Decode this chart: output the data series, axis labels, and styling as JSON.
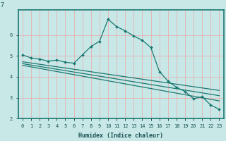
{
  "xlabel": "Humidex (Indice chaleur)",
  "bg_color": "#c8e8e8",
  "plot_bg_color": "#c8e8e8",
  "grid_color": "#e8b0b0",
  "line_color": "#1a7870",
  "border_color": "#1a7870",
  "xlabel_color": "#1a5050",
  "ylabel_color": "#1a5050",
  "tick_color": "#1a5050",
  "xlim": [
    -0.5,
    23.5
  ],
  "ylim": [
    2,
    7.2
  ],
  "yticks": [
    2,
    3,
    4,
    5,
    6
  ],
  "ytick_labels": [
    "2",
    "3",
    "4",
    "5",
    "6"
  ],
  "xticks": [
    0,
    1,
    2,
    3,
    4,
    5,
    6,
    7,
    8,
    9,
    10,
    11,
    12,
    13,
    14,
    15,
    16,
    17,
    18,
    19,
    20,
    21,
    22,
    23
  ],
  "line1_x": [
    0,
    1,
    2,
    3,
    4,
    5,
    6,
    7,
    8,
    9,
    10,
    11,
    12,
    13,
    14,
    15,
    16,
    17,
    18,
    19,
    20,
    21,
    22,
    23
  ],
  "line1_y": [
    5.05,
    4.9,
    4.85,
    4.75,
    4.8,
    4.7,
    4.65,
    5.05,
    5.45,
    5.7,
    6.75,
    6.4,
    6.2,
    5.95,
    5.75,
    5.4,
    4.25,
    3.8,
    3.5,
    3.3,
    2.95,
    3.05,
    2.65,
    2.45
  ],
  "line2_x": [
    0,
    23
  ],
  "line2_y": [
    4.72,
    3.35
  ],
  "line3_x": [
    0,
    23
  ],
  "line3_y": [
    4.63,
    3.1
  ],
  "line4_x": [
    0,
    23
  ],
  "line4_y": [
    4.55,
    2.85
  ]
}
